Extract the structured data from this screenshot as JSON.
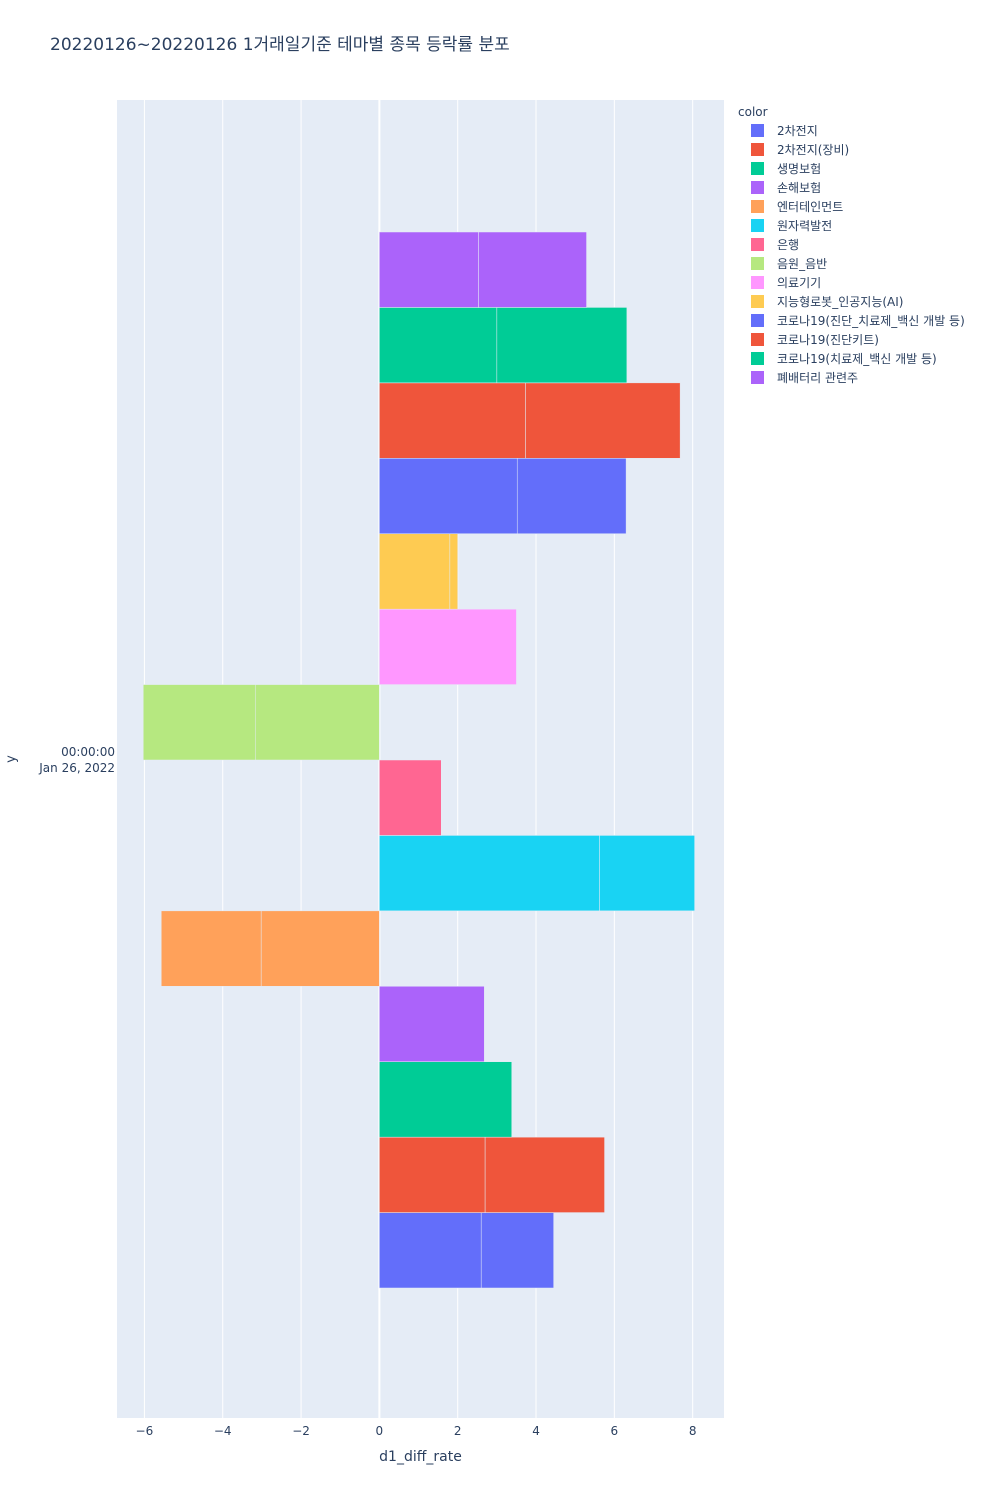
{
  "chart_data": {
    "type": "bar",
    "orientation": "horizontal",
    "barmode": "relative",
    "title": "20220126~20220126 1거래일기준 테마별 종목 등락률 분포",
    "xlabel": "d1_diff_rate",
    "ylabel": "y",
    "y_category": [
      "00:00:00",
      "Jan 26, 2022"
    ],
    "xlim": [
      -6.7,
      8.8
    ],
    "x_ticks": [
      -6,
      -4,
      -2,
      0,
      2,
      4,
      6,
      8
    ],
    "x_tick_labels": [
      "−6",
      "−4",
      "−2",
      "0",
      "2",
      "4",
      "6",
      "8"
    ],
    "legend_title": "color",
    "legend_position": "top-right",
    "series": [
      {
        "name": "2차전지",
        "color": "#636efa",
        "values": [
          2.6,
          1.85
        ]
      },
      {
        "name": "2차전지(장비)",
        "color": "#EF553B",
        "values": [
          2.7,
          3.05
        ]
      },
      {
        "name": "생명보험",
        "color": "#00cc96",
        "values": [
          3.38
        ]
      },
      {
        "name": "손해보험",
        "color": "#ab63fa",
        "values": [
          2.68
        ]
      },
      {
        "name": "엔터테인먼트",
        "color": "#FFA15A",
        "values": [
          -3.02,
          -2.55
        ]
      },
      {
        "name": "원자력발전",
        "color": "#19d3f3",
        "values": [
          5.62,
          2.43
        ]
      },
      {
        "name": "은행",
        "color": "#FF6692",
        "values": [
          1.58
        ]
      },
      {
        "name": "음원_음반",
        "color": "#B6E880",
        "values": [
          -3.17,
          -2.86
        ]
      },
      {
        "name": "의료기기",
        "color": "#FF97FF",
        "values": [
          3.5
        ]
      },
      {
        "name": "지능형로봇_인공지능(AI)",
        "color": "#FECB52",
        "values": [
          1.8,
          0.2
        ]
      },
      {
        "name": "코로나19(진단_치료제_백신 개발 등)",
        "color": "#636efa",
        "values": [
          3.52,
          2.78
        ]
      },
      {
        "name": "코로나19(진단키트)",
        "color": "#EF553B",
        "values": [
          3.73,
          3.95
        ]
      },
      {
        "name": "코로나19(치료제_백신 개발 등)",
        "color": "#00cc96",
        "values": [
          3.0,
          3.32
        ]
      },
      {
        "name": "폐배터리 관련주",
        "color": "#ab63fa",
        "values": [
          2.53,
          2.76
        ]
      }
    ]
  }
}
